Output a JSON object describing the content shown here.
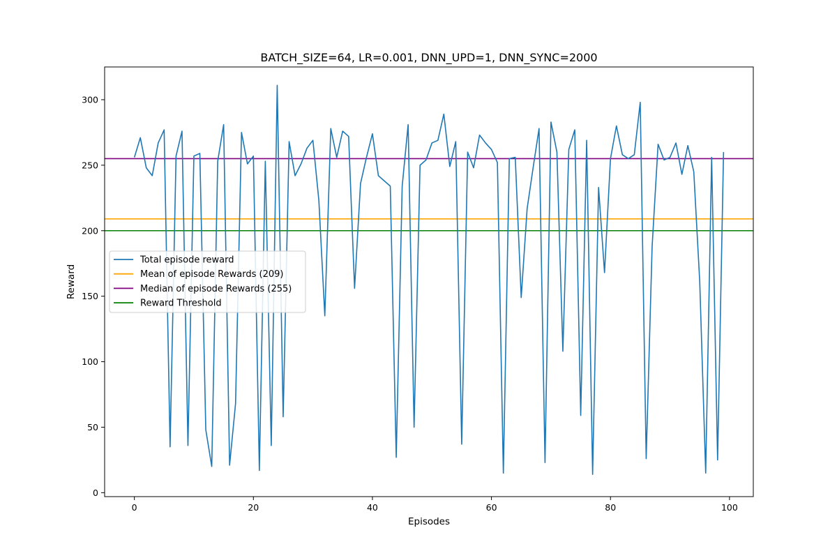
{
  "chart_data": {
    "type": "line",
    "title": "BATCH_SIZE=64, LR=0.001, DNN_UPD=1, DNN_SYNC=2000",
    "xlabel": "Episodes",
    "ylabel": "Reward",
    "xlim": [
      -5,
      104
    ],
    "ylim": [
      -3,
      325
    ],
    "xticks": [
      0,
      20,
      40,
      60,
      80,
      100
    ],
    "yticks": [
      0,
      50,
      100,
      150,
      200,
      250,
      300
    ],
    "grid": false,
    "legend_position": "center-left",
    "series": [
      {
        "name": "Total episode reward",
        "color": "#1f77b4",
        "kind": "line",
        "x": [
          0,
          1,
          2,
          3,
          4,
          5,
          6,
          7,
          8,
          9,
          10,
          11,
          12,
          13,
          14,
          15,
          16,
          17,
          18,
          19,
          20,
          21,
          22,
          23,
          24,
          25,
          26,
          27,
          28,
          29,
          30,
          31,
          32,
          33,
          34,
          35,
          36,
          37,
          38,
          39,
          40,
          41,
          42,
          43,
          44,
          45,
          46,
          47,
          48,
          49,
          50,
          51,
          52,
          53,
          54,
          55,
          56,
          57,
          58,
          59,
          60,
          61,
          62,
          63,
          64,
          65,
          66,
          67,
          68,
          69,
          70,
          71,
          72,
          73,
          74,
          75,
          76,
          77,
          78,
          79,
          80,
          81,
          82,
          83,
          84,
          85,
          86,
          87,
          88,
          89,
          90,
          91,
          92,
          93,
          94,
          95,
          96,
          97,
          98,
          99
        ],
        "values": [
          256,
          271,
          248,
          242,
          267,
          277,
          35,
          257,
          276,
          36,
          257,
          259,
          48,
          20,
          253,
          281,
          21,
          68,
          275,
          251,
          257,
          17,
          253,
          36,
          311,
          58,
          268,
          242,
          251,
          263,
          269,
          223,
          135,
          278,
          256,
          276,
          272,
          156,
          236,
          256,
          274,
          242,
          238,
          234,
          27,
          234,
          281,
          50,
          250,
          254,
          267,
          269,
          289,
          249,
          268,
          37,
          260,
          248,
          273,
          267,
          262,
          252,
          15,
          255,
          256,
          149,
          217,
          248,
          278,
          23,
          283,
          260,
          108,
          262,
          277,
          59,
          269,
          14,
          233,
          168,
          255,
          280,
          258,
          255,
          258,
          298,
          26,
          188,
          266,
          254,
          256,
          267,
          243,
          265,
          245,
          161,
          15,
          256,
          25,
          260
        ]
      },
      {
        "name": "Mean of episode Rewards (209)",
        "color": "#ffa500",
        "kind": "hline",
        "value": 209
      },
      {
        "name": "Median of episode Rewards (255)",
        "color": "#800080",
        "kind": "hline",
        "value": 255
      },
      {
        "name": "Reward Threshold",
        "color": "#008000",
        "kind": "hline",
        "value": 200
      }
    ]
  }
}
